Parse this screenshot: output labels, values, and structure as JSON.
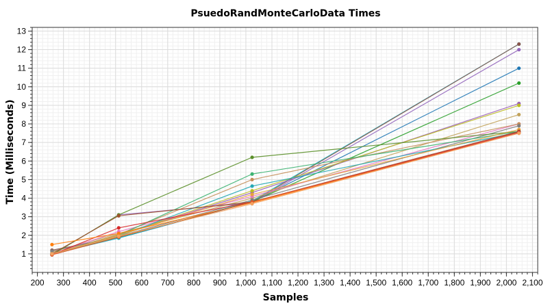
{
  "chart_data": {
    "type": "line",
    "title": "PsuedoRandMonteCarloData Times",
    "xlabel": "Samples",
    "ylabel": "Time (Milliseconds)",
    "xlim": [
      180,
      2120
    ],
    "ylim": [
      0,
      13.2
    ],
    "x_major_ticks": [
      200,
      300,
      400,
      500,
      600,
      700,
      800,
      900,
      1000,
      1100,
      1200,
      1300,
      1400,
      1500,
      1600,
      1700,
      1800,
      1900,
      2000,
      2100
    ],
    "x_tick_labels": [
      "200",
      "300",
      "400",
      "500",
      "600",
      "700",
      "800",
      "900",
      "1,000",
      "1,100",
      "1,200",
      "1,300",
      "1,400",
      "1,500",
      "1,600",
      "1,700",
      "1,800",
      "1,900",
      "2,000",
      "2,100"
    ],
    "y_major_ticks": [
      1,
      2,
      3,
      4,
      5,
      6,
      7,
      8,
      9,
      10,
      11,
      12,
      13
    ],
    "y_tick_labels": [
      "1",
      "2",
      "3",
      "4",
      "5",
      "6",
      "7",
      "8",
      "9",
      "10",
      "11",
      "12",
      "13"
    ],
    "grid": true,
    "x": [
      256,
      512,
      1024,
      2048
    ],
    "series": [
      {
        "color": "#1f77b4",
        "values": [
          1.0,
          1.85,
          3.8,
          11.0
        ]
      },
      {
        "color": "#17becf",
        "values": [
          1.0,
          1.85,
          3.85,
          12.3
        ]
      },
      {
        "color": "#8c564b",
        "values": [
          1.2,
          1.9,
          3.8,
          12.3
        ]
      },
      {
        "color": "#9467bd",
        "values": [
          0.95,
          3.1,
          3.75,
          12.0
        ]
      },
      {
        "color": "#2ca02c",
        "values": [
          1.0,
          1.9,
          3.8,
          10.2
        ]
      },
      {
        "color": "#9a5fb6",
        "values": [
          1.0,
          2.0,
          4.3,
          9.1
        ]
      },
      {
        "color": "#bcbd22",
        "values": [
          1.0,
          2.0,
          4.4,
          9.0
        ]
      },
      {
        "color": "#c2a35b",
        "values": [
          1.1,
          2.1,
          4.0,
          8.5
        ]
      },
      {
        "color": "#e377c2",
        "values": [
          1.0,
          2.2,
          4.1,
          8.0
        ]
      },
      {
        "color": "#c48e5a",
        "values": [
          1.0,
          2.05,
          5.0,
          8.0
        ]
      },
      {
        "color": "#7f7f7f",
        "values": [
          1.15,
          1.95,
          3.9,
          7.9
        ]
      },
      {
        "color": "#5a8f29",
        "values": [
          0.95,
          3.1,
          6.2,
          7.6
        ]
      },
      {
        "color": "#3cb371",
        "values": [
          1.0,
          2.0,
          5.3,
          7.6
        ]
      },
      {
        "color": "#26a8b4",
        "values": [
          1.0,
          1.95,
          4.65,
          7.55
        ]
      },
      {
        "color": "#e8a33d",
        "values": [
          1.0,
          2.0,
          4.2,
          7.7
        ]
      },
      {
        "color": "#a0522d",
        "values": [
          1.0,
          3.05,
          3.8,
          7.6
        ]
      },
      {
        "color": "#d62728",
        "values": [
          0.95,
          2.4,
          3.8,
          7.55
        ]
      },
      {
        "color": "#ff7f0e",
        "values": [
          1.5,
          2.1,
          3.75,
          7.5
        ]
      },
      {
        "color": "#e05a2a",
        "values": [
          0.95,
          1.9,
          3.8,
          7.5
        ]
      },
      {
        "color": "#f4a261",
        "values": [
          1.0,
          1.95,
          3.7,
          7.5
        ]
      }
    ]
  }
}
